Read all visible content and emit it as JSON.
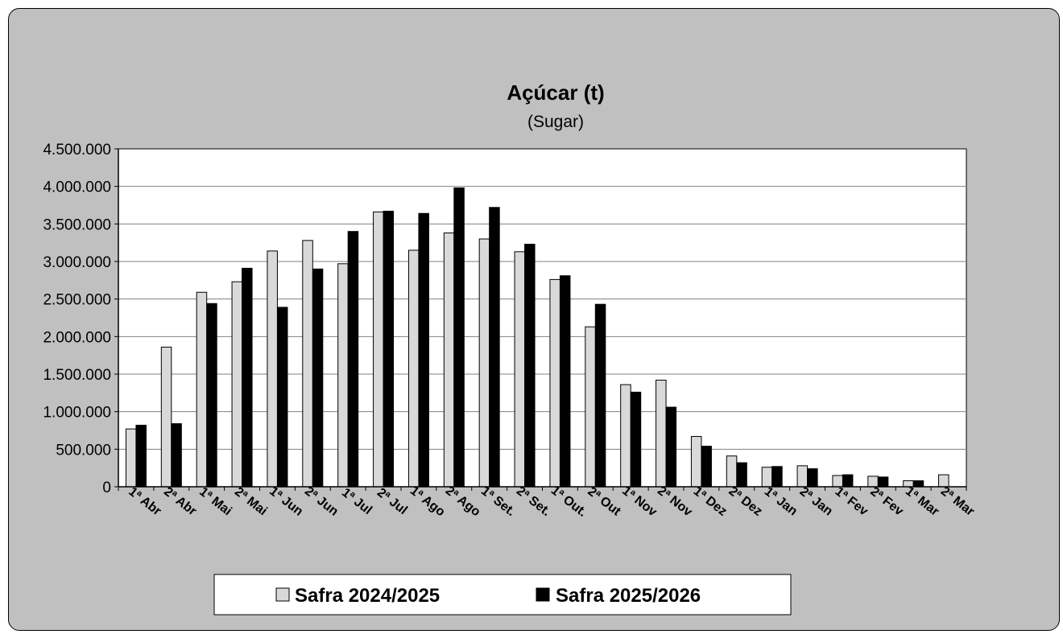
{
  "chart_data": {
    "type": "bar",
    "title": "Açúcar (t)",
    "subtitle": "(Sugar)",
    "xlabel": "",
    "ylabel": "",
    "ylim": [
      0,
      4500000
    ],
    "yticks": [
      0,
      500000,
      1000000,
      1500000,
      2000000,
      2500000,
      3000000,
      3500000,
      4000000,
      4500000
    ],
    "ytick_labels": [
      "0",
      "500.000",
      "1.000.000",
      "1.500.000",
      "2.000.000",
      "2.500.000",
      "3.000.000",
      "3.500.000",
      "4.000.000",
      "4.500.000"
    ],
    "grid": true,
    "legend_position": "bottom",
    "categories": [
      "1ª Abr",
      "2ª Abr",
      "1ª Mai",
      "2ª Mai",
      "1ª Jun",
      "2ª Jun",
      "1ª Jul",
      "2ª Jul",
      "1ª Ago",
      "2ª Ago",
      "1ª Set.",
      "2ª Set.",
      "1ª Out.",
      "2ª Out",
      "1ª Nov",
      "2ª Nov",
      "1ª Dez",
      "2ª Dez",
      "1ª Jan",
      "2ª Jan",
      "1ª Fev",
      "2ª Fev",
      "1ª Mar",
      "2ª Mar"
    ],
    "series": [
      {
        "name": "Safra 2024/2025",
        "color": "#d9d9d9",
        "values": [
          770000,
          1860000,
          2590000,
          2730000,
          3140000,
          3280000,
          2970000,
          3660000,
          3150000,
          3380000,
          3300000,
          3130000,
          2760000,
          2130000,
          1360000,
          1420000,
          670000,
          410000,
          260000,
          280000,
          150000,
          140000,
          80000,
          160000
        ]
      },
      {
        "name": "Safra 2025/2026",
        "color": "#000000",
        "values": [
          820000,
          840000,
          2440000,
          2910000,
          2390000,
          2900000,
          3400000,
          3670000,
          3640000,
          3980000,
          3720000,
          3230000,
          2810000,
          2430000,
          1260000,
          1060000,
          540000,
          320000,
          270000,
          240000,
          160000,
          130000,
          80000,
          null
        ]
      }
    ]
  }
}
